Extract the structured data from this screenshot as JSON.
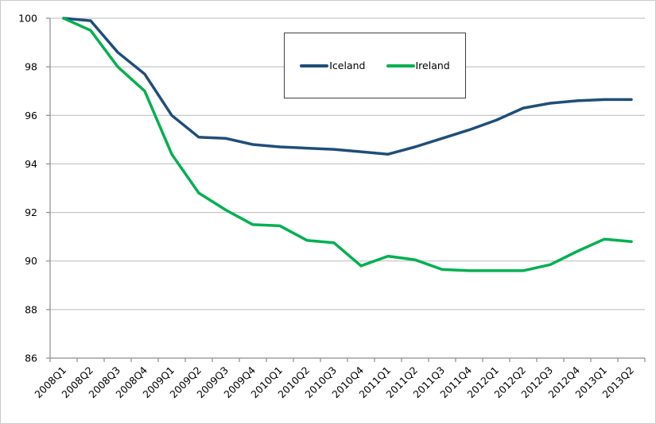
{
  "chart_data": {
    "type": "line",
    "title": "",
    "xlabel": "",
    "ylabel": "",
    "categories": [
      "2008Q1",
      "2008Q2",
      "2008Q3",
      "2008Q4",
      "2009Q1",
      "2009Q2",
      "2009Q3",
      "2009Q4",
      "2010Q1",
      "2010Q2",
      "2010Q3",
      "2010Q4",
      "2011Q1",
      "2011Q2",
      "2011Q3",
      "2011Q4",
      "2012Q1",
      "2012Q2",
      "2012Q3",
      "2012Q4",
      "2013Q1",
      "2013Q2"
    ],
    "series": [
      {
        "name": "Iceland",
        "color": "#1F4E79",
        "values": [
          100,
          99.9,
          98.6,
          97.7,
          96.0,
          95.1,
          95.05,
          94.8,
          94.7,
          94.65,
          94.6,
          94.5,
          94.4,
          94.7,
          95.05,
          95.4,
          95.8,
          96.3,
          96.5,
          96.6,
          96.65,
          96.65
        ]
      },
      {
        "name": "Ireland",
        "color": "#00B050",
        "values": [
          100,
          99.5,
          98.0,
          97.0,
          94.4,
          92.8,
          92.1,
          91.5,
          91.45,
          90.85,
          90.75,
          89.8,
          90.2,
          90.05,
          89.65,
          89.6,
          89.6,
          89.6,
          89.85,
          90.4,
          90.9,
          90.8
        ]
      }
    ],
    "ylim": [
      86,
      100
    ],
    "yticks": [
      86,
      88,
      90,
      92,
      94,
      96,
      98,
      100
    ],
    "grid": "horizontal-on",
    "legend_position": "top-center-inside",
    "x_label_rotation": -45,
    "colors": {
      "gridline": "#b9b9b9",
      "axis": "#8c8c8c",
      "tick_text": "#000000"
    }
  }
}
